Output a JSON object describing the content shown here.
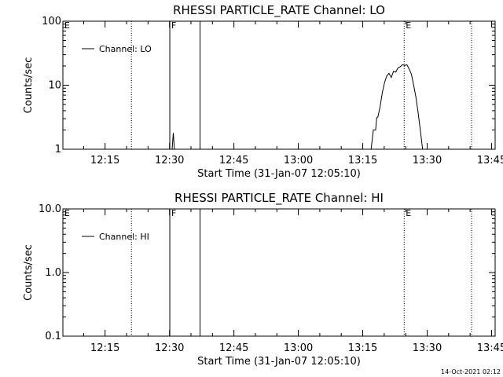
{
  "chart_data": [
    {
      "type": "line",
      "title": "RHESSI PARTICLE_RATE Channel: LO",
      "xlabel": "Start Time (31-Jan-07 12:05:10)",
      "ylabel": "Counts/sec",
      "y_scale": "log",
      "ylim": [
        1,
        100
      ],
      "xlim": [
        "12:05:10",
        "13:45:50"
      ],
      "x_ticks": [
        "12:15",
        "12:30",
        "12:45",
        "13:00",
        "13:15",
        "13:30",
        "13:45"
      ],
      "y_ticks": [
        "1",
        "10",
        "100"
      ],
      "grid": false,
      "legend": {
        "position": "top-left",
        "entries": [
          "Channel: LO"
        ]
      },
      "series": [
        {
          "name": "Channel: LO",
          "points": [
            [
              "12:30:37",
              1.0
            ],
            [
              "12:30:53",
              1.8
            ],
            [
              "12:31:08",
              1.0
            ],
            [
              "13:16:57",
              1.0
            ],
            [
              "13:17:28",
              2.0
            ],
            [
              "13:18:00",
              2.0
            ],
            [
              "13:18:15",
              3.1
            ],
            [
              "13:18:31",
              3.2
            ],
            [
              "13:19:02",
              4.6
            ],
            [
              "13:19:33",
              7.6
            ],
            [
              "13:20:05",
              11.0
            ],
            [
              "13:20:36",
              14.0
            ],
            [
              "13:21:07",
              15.3
            ],
            [
              "13:21:38",
              13.2
            ],
            [
              "13:22:10",
              16.5
            ],
            [
              "13:22:41",
              16.0
            ],
            [
              "13:23:12",
              18.6
            ],
            [
              "13:23:43",
              19.5
            ],
            [
              "13:24:15",
              20.9
            ],
            [
              "13:24:46",
              20.3
            ],
            [
              "13:25:17",
              20.9
            ],
            [
              "13:25:48",
              18.0
            ],
            [
              "13:26:20",
              14.8
            ],
            [
              "13:26:51",
              10.0
            ],
            [
              "13:27:22",
              6.6
            ],
            [
              "13:27:53",
              3.8
            ],
            [
              "13:28:25",
              2.0
            ],
            [
              "13:28:56",
              1.0
            ]
          ]
        }
      ],
      "annotations": [
        {
          "type": "dotted-vline",
          "x": "12:21:08",
          "label": ""
        },
        {
          "type": "dotted-vline",
          "x": "13:24:39",
          "label": "E"
        },
        {
          "type": "dotted-vline",
          "x": "13:40:20",
          "label": ""
        },
        {
          "type": "solid-vline",
          "x": "12:30:04",
          "label": "F"
        },
        {
          "type": "solid-vline",
          "x": "12:37:07",
          "label": ""
        },
        {
          "type": "marker",
          "x": "12:05:10",
          "label": "E"
        }
      ]
    },
    {
      "type": "line",
      "title": "RHESSI PARTICLE_RATE Channel: HI",
      "xlabel": "Start Time (31-Jan-07 12:05:10)",
      "ylabel": "Counts/sec",
      "y_scale": "log",
      "ylim": [
        0.1,
        10.0
      ],
      "xlim": [
        "12:05:10",
        "13:45:50"
      ],
      "x_ticks": [
        "12:15",
        "12:30",
        "12:45",
        "13:00",
        "13:15",
        "13:30",
        "13:45"
      ],
      "y_ticks": [
        "0.1",
        "1.0",
        "10.0"
      ],
      "grid": false,
      "legend": {
        "position": "top-left",
        "entries": [
          "Channel: HI"
        ]
      },
      "series": [
        {
          "name": "Channel: HI",
          "points": []
        }
      ],
      "annotations": [
        {
          "type": "dotted-vline",
          "x": "12:21:08",
          "label": ""
        },
        {
          "type": "dotted-vline",
          "x": "13:24:39",
          "label": "E"
        },
        {
          "type": "dotted-vline",
          "x": "13:40:20",
          "label": ""
        },
        {
          "type": "solid-vline",
          "x": "12:30:04",
          "label": "F"
        },
        {
          "type": "solid-vline",
          "x": "12:37:07",
          "label": ""
        },
        {
          "type": "marker",
          "x": "12:05:10",
          "label": "E"
        }
      ]
    }
  ],
  "footer": {
    "timestamp": "14-Oct-2021 02:12"
  }
}
